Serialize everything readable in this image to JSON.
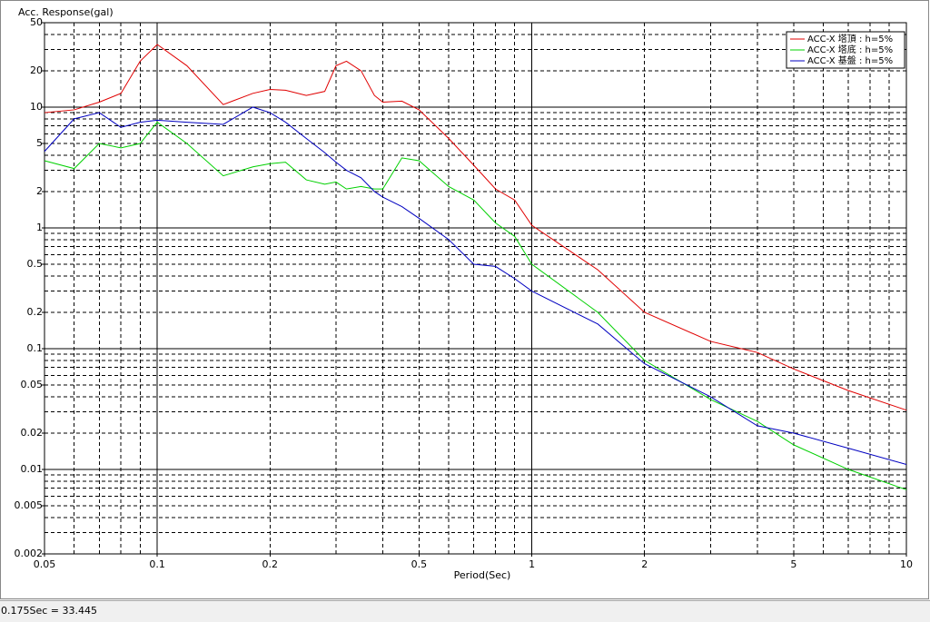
{
  "chart_data": {
    "type": "line",
    "title": "Acc. Response(gal)",
    "xlabel": "Period(Sec)",
    "log_x": true,
    "log_y": true,
    "grid": true,
    "legend": "upper right",
    "xlim": [
      0.05,
      10
    ],
    "xticks": [
      0.05,
      0.1,
      0.2,
      0.5,
      1,
      2,
      5,
      10
    ],
    "ylim": [
      0.002,
      50
    ],
    "yticks": [
      0.002,
      0.005,
      0.01,
      0.02,
      0.05,
      0.1,
      0.2,
      0.5,
      1,
      2,
      5,
      10,
      20,
      50
    ],
    "x": [
      0.05,
      0.06,
      0.07,
      0.08,
      0.09,
      0.1,
      0.12,
      0.15,
      0.18,
      0.2,
      0.22,
      0.25,
      0.28,
      0.3,
      0.32,
      0.35,
      0.38,
      0.4,
      0.45,
      0.5,
      0.6,
      0.7,
      0.8,
      0.9,
      1,
      1.5,
      2,
      3,
      4,
      5,
      7,
      10
    ],
    "series": [
      {
        "name": "ACC-X 塔頂 : h=5%",
        "color": "#e00000",
        "values": [
          9,
          9.5,
          11,
          13,
          24,
          33,
          22,
          10.5,
          13,
          14,
          13.8,
          12.5,
          13.5,
          22,
          24,
          20,
          12.5,
          11,
          11.2,
          9.5,
          5.5,
          3.3,
          2.1,
          1.7,
          1.05,
          0.45,
          0.2,
          0.115,
          0.093,
          0.068,
          0.045,
          0.031
        ]
      },
      {
        "name": "ACC-X 塔底 : h=5%",
        "color": "#00d000",
        "values": [
          3.6,
          3.1,
          5,
          4.6,
          5,
          7.5,
          5,
          2.7,
          3.2,
          3.4,
          3.5,
          2.5,
          2.3,
          2.4,
          2.1,
          2.2,
          2.1,
          2.1,
          3.8,
          3.6,
          2.2,
          1.7,
          1.1,
          0.85,
          0.5,
          0.2,
          0.08,
          0.038,
          0.025,
          0.016,
          0.01,
          0.0068
        ]
      },
      {
        "name": "ACC-X 基盤 : h=5%",
        "color": "#0000c0",
        "values": [
          4.3,
          8,
          9,
          6.8,
          7.5,
          7.8,
          7.5,
          7.2,
          10,
          9,
          7.5,
          5.5,
          4.2,
          3.5,
          3,
          2.6,
          2,
          1.8,
          1.5,
          1.2,
          0.8,
          0.5,
          0.48,
          0.38,
          0.3,
          0.16,
          0.075,
          0.04,
          0.023,
          0.02,
          0.015,
          0.011
        ]
      }
    ]
  },
  "status_bar": "0.175Sec = 33.445"
}
